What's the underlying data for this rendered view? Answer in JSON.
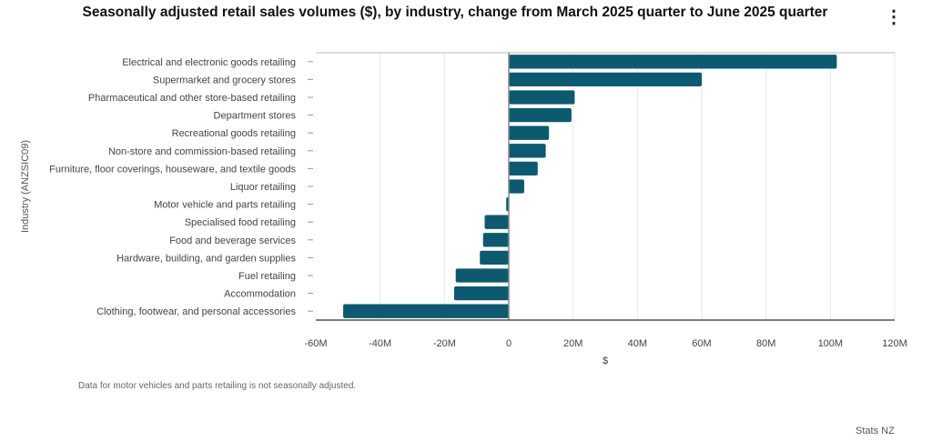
{
  "title": "Seasonally adjusted retail sales volumes ($), by industry, change from March 2025 quarter to June 2025 quarter",
  "menu_icon": "vertical-ellipsis-icon",
  "footnote": "Data for motor vehicles and parts retailing is not seasonally adjusted.",
  "credit": "Stats NZ",
  "colors": {
    "bar": "#0d5a70",
    "grid": "#e6e6e6",
    "axis": "#333333"
  },
  "chart_data": {
    "type": "bar",
    "orientation": "horizontal",
    "xlabel": "$",
    "ylabel": "Industry (ANZSIC09)",
    "xlim": [
      -60000000,
      120000000
    ],
    "xticks": [
      {
        "value": -60000000,
        "label": "-60M"
      },
      {
        "value": -40000000,
        "label": "-40M"
      },
      {
        "value": -20000000,
        "label": "-20M"
      },
      {
        "value": 0,
        "label": "0"
      },
      {
        "value": 20000000,
        "label": "20M"
      },
      {
        "value": 40000000,
        "label": "40M"
      },
      {
        "value": 60000000,
        "label": "60M"
      },
      {
        "value": 80000000,
        "label": "80M"
      },
      {
        "value": 100000000,
        "label": "100M"
      },
      {
        "value": 120000000,
        "label": "120M"
      }
    ],
    "grid": true,
    "categories": [
      "Electrical and electronic goods retailing",
      "Supermarket and grocery stores",
      "Pharmaceutical and other store-based retailing",
      "Department stores",
      "Recreational goods retailing",
      "Non-store and commission-based retailing",
      "Furniture, floor coverings, houseware, and textile goods",
      "Liquor retailing",
      "Motor vehicle and parts retailing",
      "Specialised food retailing",
      "Food and beverage services",
      "Hardware, building, and garden supplies",
      "Fuel retailing",
      "Accommodation",
      "Clothing, footwear, and personal accessories"
    ],
    "values": [
      102000000,
      60000000,
      20500000,
      19500000,
      12500000,
      11500000,
      9000000,
      4800000,
      -800000,
      -7500000,
      -8000000,
      -9000000,
      -16500000,
      -17000000,
      -51500000
    ]
  }
}
